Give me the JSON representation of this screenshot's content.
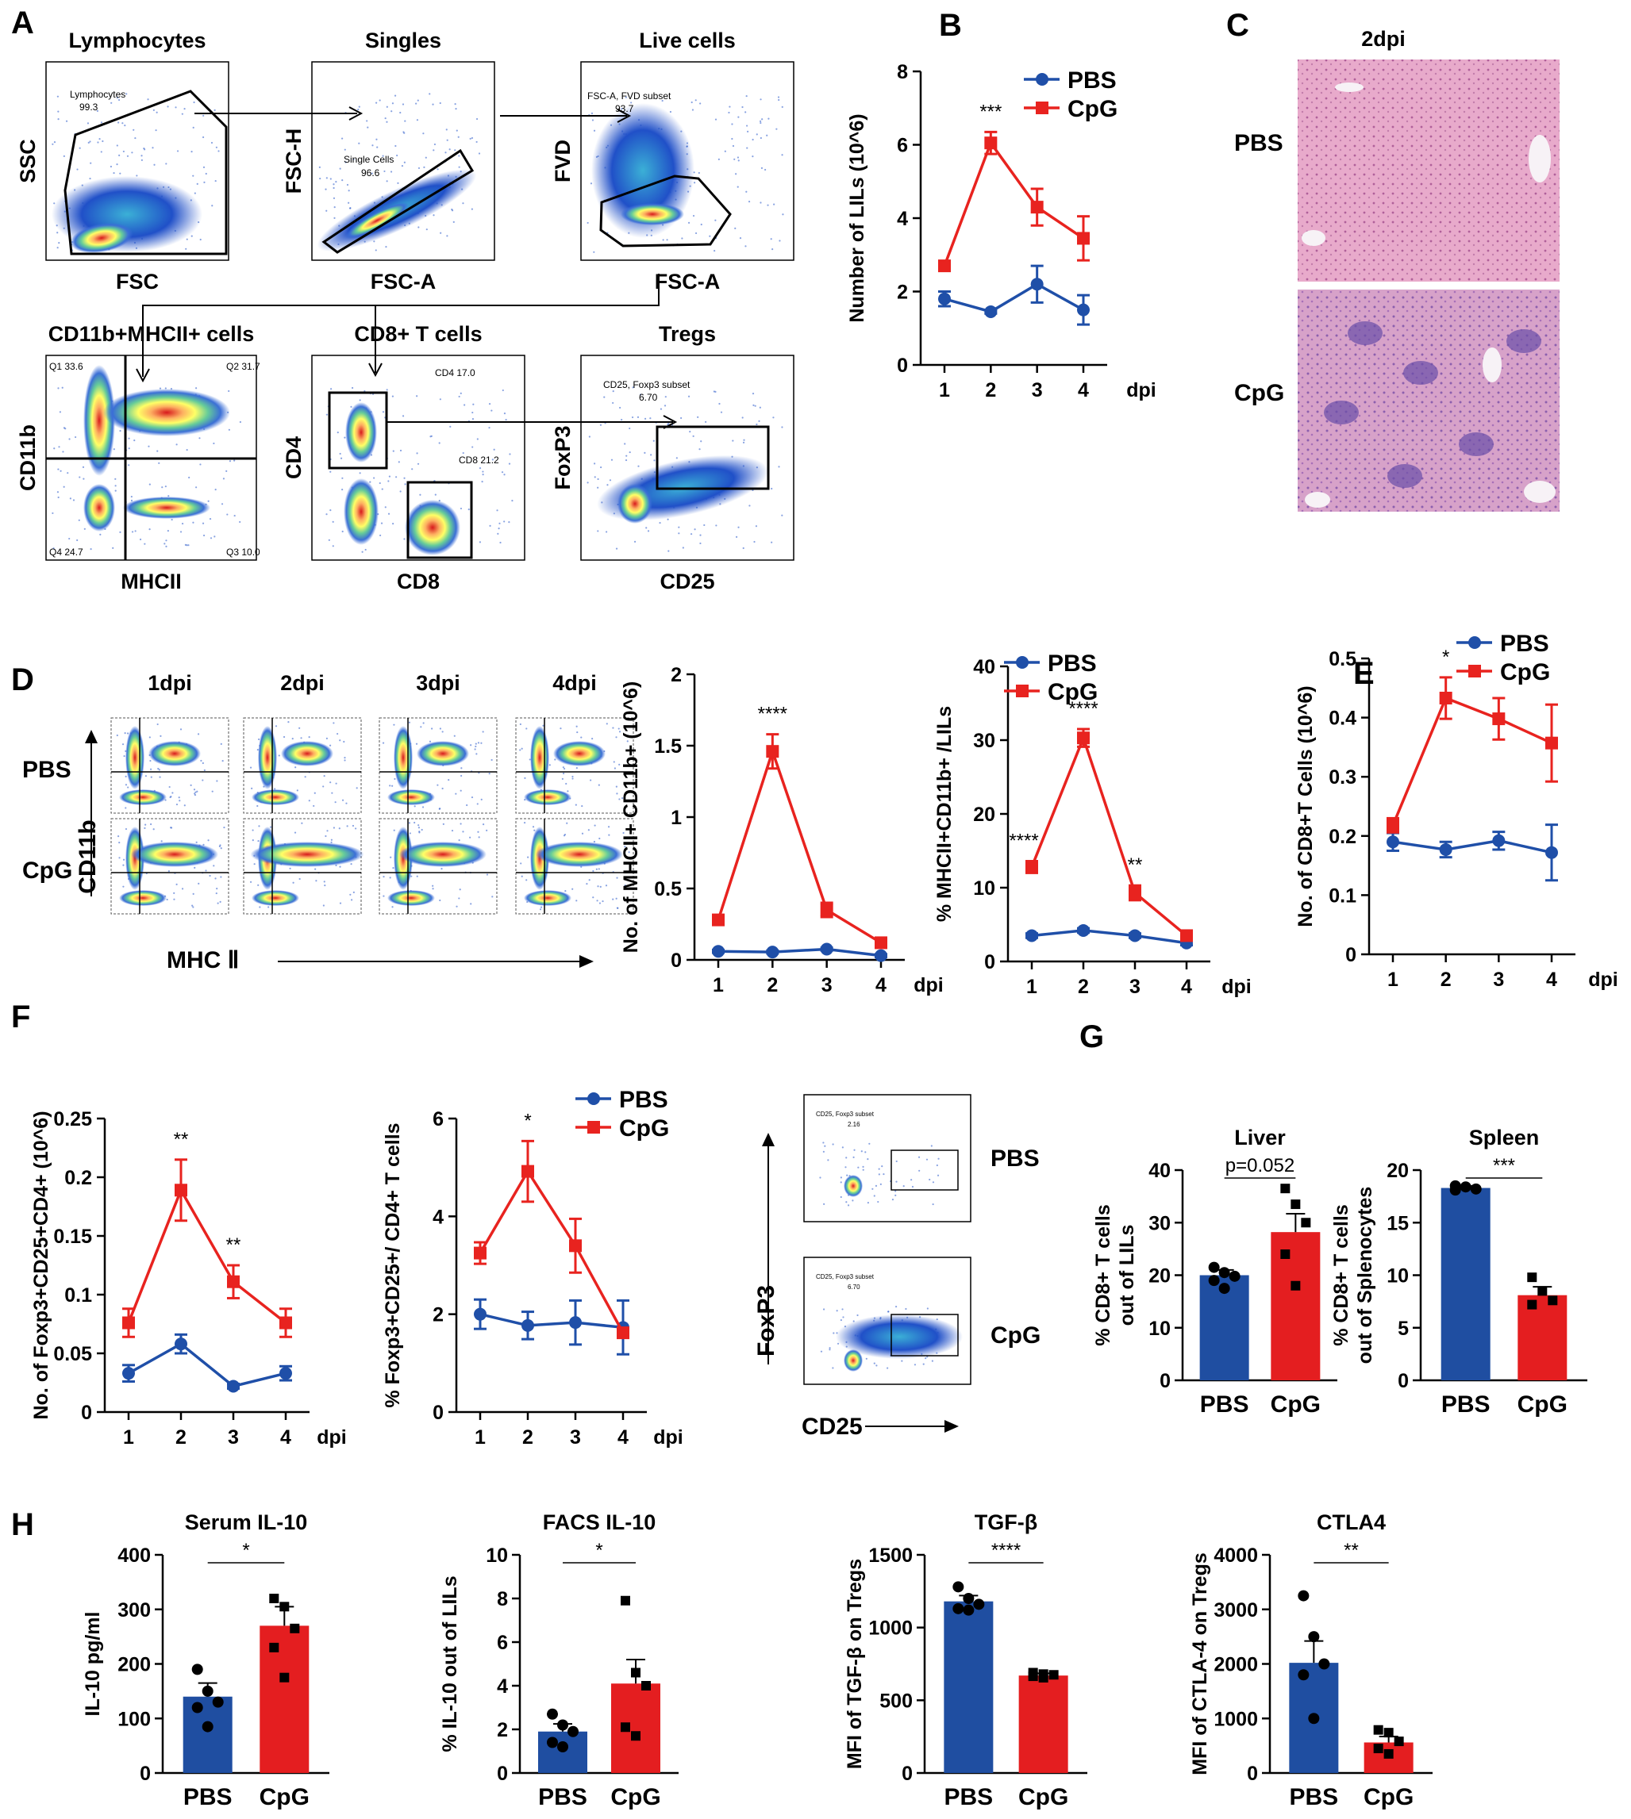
{
  "colors": {
    "pbs": "#1f4fa8",
    "cpg": "#e8231f",
    "bar_pbs": "#1f4ea1",
    "bar_cpg": "#e41e20",
    "histo_pbs": "#e5a9cc",
    "histo_cpg": "#d4a0c8"
  },
  "panelA": {
    "letter": "A",
    "plots": [
      {
        "title": "Lymphocytes",
        "xlabel": "FSC",
        "ylabel": "SSC",
        "gate_text": [
          "Lymphocytes",
          "99.3"
        ],
        "arrow_to_next": true
      },
      {
        "title": "Singles",
        "xlabel": "FSC-A",
        "ylabel": "FSC-H",
        "gate_text": [
          "Single Cells",
          "96.6"
        ],
        "arrow_to_next": true
      },
      {
        "title": "Live cells",
        "xlabel": "FSC-A",
        "ylabel": "FVD",
        "gate_text": [
          "FSC-A, FVD subset",
          "93.7"
        ]
      },
      {
        "title": "CD11b+MHCII+ cells",
        "xlabel": "MHCII",
        "ylabel": "CD11b",
        "quadrants": [
          "Q1 33.6",
          "Q2 31.7",
          "Q4 24.7",
          "Q3 10.0"
        ]
      },
      {
        "title": "CD8+ T cells",
        "xlabel": "CD8",
        "ylabel": "CD4",
        "gate_text": [
          "CD4 17.0",
          "CD8 21.2"
        ]
      },
      {
        "title": "Tregs",
        "xlabel": "CD25",
        "ylabel": "FoxP3",
        "gate_text": [
          "CD25, Foxp3 subset",
          "6.70"
        ]
      }
    ]
  },
  "panelC": {
    "letter": "C",
    "title": "2dpi",
    "rows": [
      "PBS",
      "CpG"
    ]
  },
  "panelD_flow": {
    "letter": "D",
    "columns": [
      "1dpi",
      "2dpi",
      "3dpi",
      "4dpi"
    ],
    "rows": [
      "PBS",
      "CpG"
    ],
    "ylabel": "CD11b",
    "xlabel": "MHC Ⅱ"
  },
  "panelE": {
    "letter": "E"
  },
  "panelF_flow": {
    "letter": "F",
    "rows": [
      "PBS",
      "CpG"
    ],
    "gate_text": [
      "CD25, Foxp3 subset",
      "2.16",
      "6.70"
    ],
    "ylabel": "FoxP3",
    "xlabel": "CD25"
  },
  "panelG": {
    "letter": "G"
  },
  "panelH": {
    "letter": "H"
  },
  "chart_data": [
    {
      "id": "B",
      "type": "line",
      "x": [
        1,
        2,
        3,
        4
      ],
      "xlabel": "dpi",
      "ylabel": "Number of LILs (10^6)",
      "ylim": [
        0,
        8
      ],
      "yticks": [
        0,
        2,
        4,
        6,
        8
      ],
      "series": [
        {
          "name": "PBS",
          "values": [
            1.8,
            1.45,
            2.2,
            1.5
          ],
          "errors": [
            0.2,
            0.05,
            0.5,
            0.4
          ]
        },
        {
          "name": "CpG",
          "values": [
            2.7,
            6.05,
            4.3,
            3.45
          ],
          "errors": [
            0.05,
            0.3,
            0.5,
            0.6
          ]
        }
      ],
      "annotations": [
        {
          "x": 2,
          "text": "***"
        }
      ],
      "legend": "top-right"
    },
    {
      "id": "D1",
      "type": "line",
      "x": [
        1,
        2,
        3,
        4
      ],
      "xlabel": "dpi",
      "ylabel": "No. of MHCII+ CD11b+ (10^6)",
      "ylim": [
        0,
        2.0
      ],
      "yticks": [
        0.0,
        0.5,
        1.0,
        1.5,
        2.0
      ],
      "series": [
        {
          "name": "PBS",
          "values": [
            0.06,
            0.055,
            0.075,
            0.03
          ],
          "errors": [
            0.01,
            0.01,
            0.01,
            0.01
          ]
        },
        {
          "name": "CpG",
          "values": [
            0.28,
            1.46,
            0.35,
            0.12
          ],
          "errors": [
            0.02,
            0.12,
            0.05,
            0.02
          ]
        }
      ],
      "annotations": [
        {
          "x": 2,
          "text": "****"
        }
      ]
    },
    {
      "id": "D2",
      "type": "line",
      "x": [
        1,
        2,
        3,
        4
      ],
      "xlabel": "dpi",
      "ylabel": "% MHCII+CD11b+ /LILs",
      "ylim": [
        0,
        40
      ],
      "yticks": [
        0,
        10,
        20,
        30,
        40
      ],
      "series": [
        {
          "name": "PBS",
          "values": [
            3.5,
            4.2,
            3.5,
            2.5
          ],
          "errors": [
            0.3,
            0.3,
            0.3,
            0.3
          ]
        },
        {
          "name": "CpG",
          "values": [
            12.8,
            30.3,
            9.3,
            3.5
          ],
          "errors": [
            0.8,
            1.2,
            1.0,
            0.3
          ]
        }
      ],
      "annotations": [
        {
          "x": 1,
          "text": "****"
        },
        {
          "x": 2,
          "text": "****"
        },
        {
          "x": 3,
          "text": "**"
        }
      ],
      "legend": "top-right"
    },
    {
      "id": "E",
      "type": "line",
      "x": [
        1,
        2,
        3,
        4
      ],
      "xlabel": "dpi",
      "ylabel": "No. of CD8+T Cells (10^6)",
      "ylim": [
        0,
        0.5
      ],
      "yticks": [
        0.0,
        0.1,
        0.2,
        0.3,
        0.4,
        0.5
      ],
      "series": [
        {
          "name": "PBS",
          "values": [
            0.19,
            0.177,
            0.192,
            0.172
          ],
          "errors": [
            0.015,
            0.013,
            0.015,
            0.047
          ]
        },
        {
          "name": "CpG",
          "values": [
            0.218,
            0.433,
            0.398,
            0.357
          ],
          "errors": [
            0.012,
            0.035,
            0.035,
            0.065
          ]
        }
      ],
      "annotations": [
        {
          "x": 2,
          "text": "*"
        }
      ],
      "legend": "top-right"
    },
    {
      "id": "F1",
      "type": "line",
      "x": [
        1,
        2,
        3,
        4
      ],
      "xlabel": "dpi",
      "ylabel": "No. of Foxp3+CD25+CD4+ (10^6)",
      "ylim": [
        0,
        0.25
      ],
      "yticks": [
        0.0,
        0.05,
        0.1,
        0.15,
        0.2,
        0.25
      ],
      "series": [
        {
          "name": "PBS",
          "values": [
            0.033,
            0.058,
            0.022,
            0.033
          ],
          "errors": [
            0.007,
            0.008,
            0.002,
            0.006
          ]
        },
        {
          "name": "CpG",
          "values": [
            0.076,
            0.189,
            0.111,
            0.076
          ],
          "errors": [
            0.012,
            0.026,
            0.014,
            0.012
          ]
        }
      ],
      "annotations": [
        {
          "x": 2,
          "text": "**"
        },
        {
          "x": 3,
          "text": "**"
        }
      ]
    },
    {
      "id": "F2",
      "type": "line",
      "x": [
        1,
        2,
        3,
        4
      ],
      "xlabel": "dpi",
      "ylabel": "% Foxp3+CD25+/ CD4+ T cells",
      "ylim": [
        0,
        6
      ],
      "yticks": [
        0,
        2,
        4,
        6
      ],
      "series": [
        {
          "name": "PBS",
          "values": [
            2.0,
            1.77,
            1.83,
            1.73
          ],
          "errors": [
            0.3,
            0.28,
            0.45,
            0.55
          ]
        },
        {
          "name": "CpG",
          "values": [
            3.25,
            4.92,
            3.4,
            1.62
          ],
          "errors": [
            0.22,
            0.62,
            0.55,
            0.1
          ]
        }
      ],
      "annotations": [
        {
          "x": 2,
          "text": "*"
        }
      ],
      "legend": "top-right"
    },
    {
      "id": "G1",
      "type": "bar",
      "title": "Liver",
      "categories": [
        "PBS",
        "CpG"
      ],
      "ylabel": "% CD8+ T cells out of LILs",
      "ylim": [
        0,
        40
      ],
      "yticks": [
        0,
        10,
        20,
        30,
        40
      ],
      "values": [
        20.0,
        28.2
      ],
      "errors": [
        1.0,
        3.5
      ],
      "points": [
        [
          21.5,
          20.5,
          19.8,
          19.0,
          17.5
        ],
        [
          36.5,
          33.5,
          30.0,
          24.0,
          18.0
        ]
      ],
      "annotation": "p=0.052"
    },
    {
      "id": "G2",
      "type": "bar",
      "title": "Spleen",
      "categories": [
        "PBS",
        "CpG"
      ],
      "ylabel": "% CD8+ T cells out of Splenocytes",
      "ylim": [
        0,
        20
      ],
      "yticks": [
        0,
        5,
        10,
        15,
        20
      ],
      "values": [
        18.3,
        8.1
      ],
      "errors": [
        0.2,
        0.8
      ],
      "points": [
        [
          18.5,
          18.4,
          18.2,
          18.1
        ],
        [
          9.8,
          8.5,
          7.6,
          7.2
        ]
      ],
      "annotation": "***"
    },
    {
      "id": "H1",
      "type": "bar",
      "title": "Serum IL-10",
      "categories": [
        "PBS",
        "CpG"
      ],
      "ylabel": "IL-10 pg/ml",
      "ylim": [
        0,
        400
      ],
      "yticks": [
        0,
        100,
        200,
        300,
        400
      ],
      "values": [
        140,
        270
      ],
      "errors": [
        25,
        35
      ],
      "points": [
        [
          190,
          150,
          130,
          120,
          85
        ],
        [
          320,
          305,
          265,
          230,
          175
        ]
      ],
      "annotation": "*"
    },
    {
      "id": "H2",
      "type": "bar",
      "title": "FACS IL-10",
      "categories": [
        "PBS",
        "CpG"
      ],
      "ylabel": "% IL-10 out of LILs",
      "ylim": [
        0,
        10
      ],
      "yticks": [
        0,
        2,
        4,
        6,
        8,
        10
      ],
      "values": [
        1.9,
        4.1
      ],
      "errors": [
        0.35,
        1.1
      ],
      "points": [
        [
          2.7,
          2.2,
          1.9,
          1.4,
          1.2
        ],
        [
          7.9,
          4.6,
          4.0,
          2.1,
          1.7
        ]
      ],
      "annotation": "*"
    },
    {
      "id": "H3",
      "type": "bar",
      "title": "TGF-β",
      "categories": [
        "PBS",
        "CpG"
      ],
      "ylabel": "MFI of TGF-β on Tregs",
      "ylim": [
        0,
        1500
      ],
      "yticks": [
        0,
        500,
        1000,
        1500
      ],
      "values": [
        1180,
        670
      ],
      "errors": [
        40,
        15
      ],
      "points": [
        [
          1280,
          1200,
          1160,
          1130,
          1120
        ],
        [
          690,
          680,
          675,
          665,
          655
        ]
      ],
      "annotation": "****"
    },
    {
      "id": "H4",
      "type": "bar",
      "title": "CTLA4",
      "categories": [
        "PBS",
        "CpG"
      ],
      "ylabel": "MFI of CTLA-4 on Tregs",
      "ylim": [
        0,
        4000
      ],
      "yticks": [
        0,
        1000,
        2000,
        3000,
        4000
      ],
      "values": [
        2020,
        560
      ],
      "errors": [
        400,
        110
      ],
      "points": [
        [
          3250,
          2500,
          2000,
          1800,
          1000
        ],
        [
          790,
          740,
          580,
          450,
          350
        ]
      ],
      "annotation": "**"
    }
  ]
}
